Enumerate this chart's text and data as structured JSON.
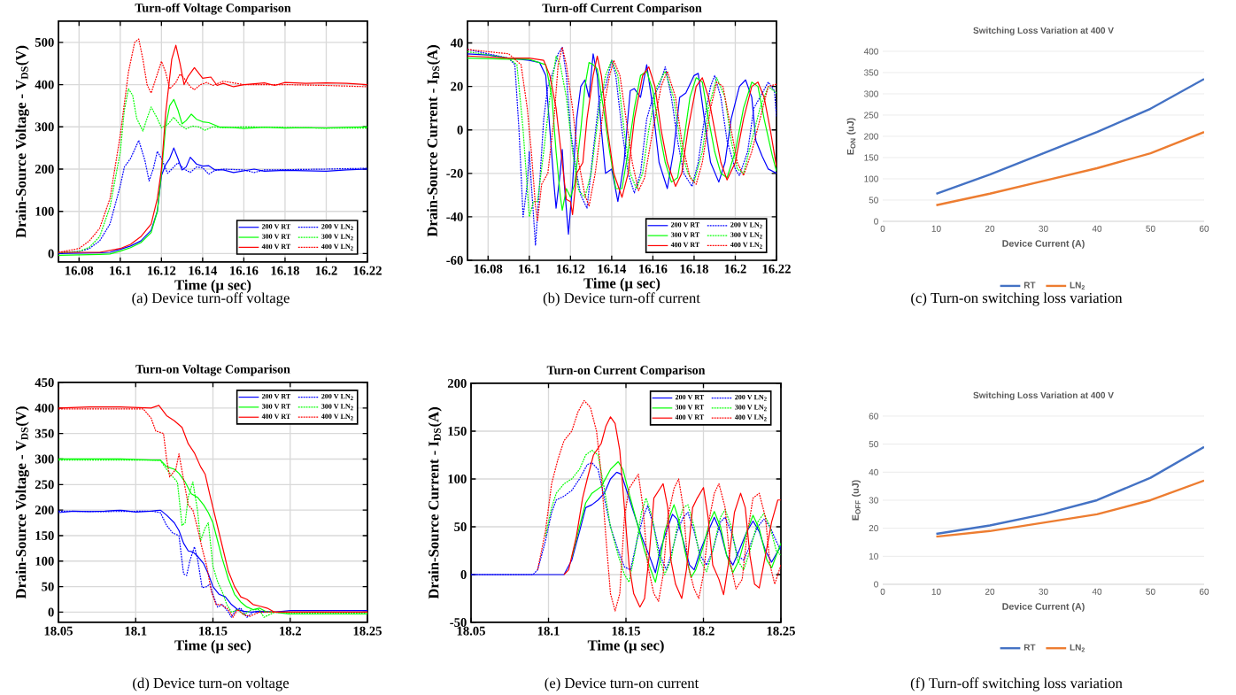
{
  "chart_data": [
    {
      "type": "line",
      "title": "Turn-off Voltage Comparison",
      "xlabel": "Time (μ sec)",
      "ylabel": "Drain-Source Voltage - V$_{DS}$(V)",
      "xlim": [
        16.07,
        16.22
      ],
      "ylim": [
        -20,
        550
      ],
      "xticks": [
        16.08,
        16.1,
        16.12,
        16.14,
        16.16,
        16.18,
        16.2,
        16.22
      ],
      "yticks": [
        0,
        100,
        200,
        300,
        400,
        500
      ],
      "grid": true,
      "legend": "bottom right",
      "annotations": [
        "(a) Device turn-off voltage"
      ],
      "series": [
        {
          "name": "200 V RT",
          "color": "#0000ff",
          "line_style": "solid",
          "x": [
            16.07,
            16.09,
            16.095,
            16.1,
            16.105,
            16.11,
            16.115,
            16.118,
            16.12,
            16.122,
            16.124,
            16.126,
            16.128,
            16.13,
            16.132,
            16.134,
            16.137,
            16.14,
            16.143,
            16.146,
            16.15,
            16.155,
            16.16,
            16.165,
            16.17,
            16.18,
            16.19,
            16.2,
            16.21,
            16.22
          ],
          "values": [
            0,
            2,
            3,
            10,
            18,
            30,
            55,
            100,
            185,
            210,
            225,
            250,
            225,
            198,
            205,
            228,
            212,
            207,
            208,
            198,
            198,
            192,
            196,
            200,
            195,
            197,
            196,
            195,
            198,
            200
          ]
        },
        {
          "name": "200 V LN$_{2}$",
          "color": "#0000ff",
          "line_style": "dotted",
          "x": [
            16.07,
            16.08,
            16.085,
            16.09,
            16.095,
            16.1,
            16.102,
            16.105,
            16.109,
            16.112,
            16.114,
            16.116,
            16.118,
            16.12,
            16.123,
            16.126,
            16.128,
            16.131,
            16.134,
            16.137,
            16.14,
            16.143,
            16.146,
            16.15,
            16.16,
            16.165,
            16.17,
            16.2,
            16.22
          ],
          "values": [
            2,
            5,
            12,
            30,
            70,
            160,
            205,
            225,
            268,
            220,
            172,
            200,
            242,
            225,
            190,
            205,
            215,
            200,
            192,
            205,
            203,
            188,
            197,
            200,
            198,
            192,
            198,
            200,
            202
          ]
        },
        {
          "name": "300 V RT",
          "color": "#00ff00",
          "line_style": "solid",
          "x": [
            16.07,
            16.09,
            16.095,
            16.1,
            16.105,
            16.11,
            16.115,
            16.118,
            16.12,
            16.122,
            16.124,
            16.126,
            16.128,
            16.13,
            16.132,
            16.1345,
            16.137,
            16.14,
            16.143,
            16.148,
            16.155,
            16.16,
            16.17,
            16.18,
            16.19,
            16.2,
            16.21,
            16.22
          ],
          "values": [
            -4,
            -2,
            -1,
            6,
            14,
            26,
            50,
            100,
            190,
            300,
            350,
            365,
            340,
            307,
            315,
            330,
            318,
            312,
            310,
            300,
            298,
            296,
            299,
            297,
            298,
            297,
            299,
            300
          ]
        },
        {
          "name": "300 V LN$_{2}$",
          "color": "#00ff00",
          "line_style": "dotted",
          "x": [
            16.07,
            16.08,
            16.085,
            16.09,
            16.095,
            16.1,
            16.102,
            16.104,
            16.106,
            16.108,
            16.111,
            16.113,
            16.115,
            16.118,
            16.12,
            16.123,
            16.126,
            16.129,
            16.132,
            16.135,
            16.138,
            16.141,
            16.145,
            16.15,
            16.16,
            16.2,
            16.22
          ],
          "values": [
            2,
            5,
            15,
            40,
            110,
            240,
            340,
            390,
            375,
            320,
            290,
            320,
            347,
            320,
            298,
            305,
            323,
            305,
            295,
            302,
            300,
            292,
            300,
            298,
            300,
            297,
            297
          ]
        },
        {
          "name": "400 V RT",
          "color": "#ff0000",
          "line_style": "solid",
          "x": [
            16.07,
            16.09,
            16.1,
            16.105,
            16.11,
            16.115,
            16.118,
            16.12,
            16.122,
            16.125,
            16.127,
            16.129,
            16.131,
            16.133,
            16.136,
            16.14,
            16.144,
            16.147,
            16.15,
            16.155,
            16.16,
            16.17,
            16.175,
            16.18,
            16.19,
            16.2,
            16.21,
            16.22
          ],
          "values": [
            3,
            3,
            12,
            22,
            40,
            70,
            130,
            200,
            330,
            460,
            493,
            450,
            400,
            420,
            440,
            415,
            418,
            398,
            403,
            395,
            400,
            404,
            398,
            405,
            403,
            404,
            403,
            400
          ]
        },
        {
          "name": "400 V LN$_{2}$",
          "color": "#ff0000",
          "line_style": "dotted",
          "x": [
            16.07,
            16.08,
            16.085,
            16.09,
            16.095,
            16.1,
            16.104,
            16.107,
            16.109,
            16.111,
            16.113,
            16.115,
            16.117,
            16.12,
            16.122,
            16.124,
            16.127,
            16.129,
            16.131,
            16.134,
            16.136,
            16.139,
            16.142,
            16.145,
            16.15,
            16.16,
            16.18,
            16.2,
            16.22
          ],
          "values": [
            3,
            12,
            30,
            60,
            130,
            280,
            430,
            500,
            508,
            460,
            400,
            380,
            410,
            455,
            430,
            390,
            405,
            425,
            415,
            395,
            388,
            400,
            405,
            398,
            408,
            400,
            400,
            398,
            395
          ]
        }
      ]
    },
    {
      "type": "line",
      "title": "Turn-off Current Comparison",
      "xlabel": "Time (μ sec)",
      "ylabel": "Drain-Source Current - I$_{DS}$(A)",
      "xlim": [
        16.07,
        16.22
      ],
      "ylim": [
        -60,
        50
      ],
      "xticks": [
        16.08,
        16.1,
        16.12,
        16.14,
        16.16,
        16.18,
        16.2,
        16.22
      ],
      "yticks": [
        -60,
        -40,
        -20,
        0,
        20,
        40
      ],
      "grid": true,
      "legend": "bottom right",
      "annotations": [
        "(b) Device turn-off current"
      ],
      "series": [
        {
          "name": "200 V RT",
          "color": "#0000ff",
          "line_style": "solid",
          "x": [
            16.07,
            16.08,
            16.09,
            16.1,
            16.105,
            16.108,
            16.11,
            16.112,
            16.113,
            16.115,
            16.116,
            16.117,
            16.119,
            16.121,
            16.123,
            16.125,
            16.127,
            16.129,
            16.131,
            16.133,
            16.135,
            16.137,
            16.14,
            16.143,
            16.146,
            16.149,
            16.151,
            16.154,
            16.157,
            16.16,
            16.163,
            16.167,
            16.17,
            16.173,
            16.176,
            16.18,
            16.182,
            16.185,
            16.188,
            16.192,
            16.195,
            16.198,
            16.202,
            16.205,
            16.208,
            16.21,
            16.213,
            16.216,
            16.22
          ],
          "values": [
            35,
            34.5,
            33,
            32,
            31,
            25,
            0,
            -25,
            -36,
            -20,
            -9,
            -25,
            -48,
            -25,
            5,
            20,
            23,
            15,
            35,
            25,
            0,
            -20,
            -18,
            -33,
            -15,
            18,
            19,
            15,
            30,
            10,
            -15,
            -27,
            -10,
            15,
            17,
            25,
            26,
            5,
            -15,
            -24,
            -15,
            5,
            20,
            23,
            15,
            -5,
            -12,
            -18,
            -20
          ]
        },
        {
          "name": "200 V LN$_{2}$",
          "color": "#0000ff",
          "line_style": "dotted",
          "x": [
            16.07,
            16.08,
            16.09,
            16.093,
            16.095,
            16.097,
            16.099,
            16.1,
            16.101,
            16.103,
            16.105,
            16.107,
            16.109,
            16.112,
            16.114,
            16.116,
            16.118,
            16.12,
            16.123,
            16.125,
            16.128,
            16.131,
            16.134,
            16.137,
            16.14,
            16.142,
            16.145,
            16.148,
            16.151,
            16.154,
            16.157,
            16.16,
            16.163,
            16.166,
            16.169,
            16.172,
            16.175,
            16.179,
            16.182,
            16.185,
            16.188,
            16.19,
            16.193,
            16.196,
            16.2,
            16.202,
            16.206,
            16.209,
            16.212,
            16.216,
            16.219,
            16.22
          ],
          "values": [
            37,
            35,
            33,
            30,
            0,
            -40,
            -25,
            -10,
            -25,
            -53,
            -25,
            5,
            20,
            28,
            35,
            38,
            25,
            0,
            -20,
            -30,
            -36,
            -10,
            15,
            20,
            32,
            25,
            0,
            -20,
            -29,
            -20,
            5,
            15,
            20,
            29,
            15,
            -5,
            -20,
            -26,
            -15,
            5,
            20,
            25,
            15,
            -5,
            -18,
            -21,
            -10,
            10,
            15,
            22,
            18,
            6
          ]
        },
        {
          "name": "300 V RT",
          "color": "#00ff00",
          "line_style": "solid",
          "x": [
            16.07,
            16.09,
            16.1,
            16.108,
            16.111,
            16.113,
            16.115,
            16.116,
            16.118,
            16.12,
            16.122,
            16.125,
            16.127,
            16.129,
            16.131,
            16.133,
            16.136,
            16.139,
            16.142,
            16.145,
            16.148,
            16.151,
            16.154,
            16.157,
            16.16,
            16.163,
            16.166,
            16.169,
            16.172,
            16.175,
            16.178,
            16.181,
            16.184,
            16.187,
            16.19,
            16.193,
            16.196,
            16.2,
            16.204,
            16.208,
            16.211,
            16.214,
            16.218,
            16.22
          ],
          "values": [
            33,
            32.5,
            32.5,
            30,
            15,
            -10,
            -30,
            -37,
            -27,
            -31,
            -25,
            0,
            20,
            31,
            30,
            28,
            10,
            -10,
            -27,
            -27,
            -10,
            10,
            25,
            27,
            18,
            0,
            -15,
            -24,
            -22,
            -5,
            15,
            24,
            22,
            5,
            -10,
            -20,
            -22,
            -10,
            10,
            22,
            20,
            5,
            -12,
            -19
          ]
        },
        {
          "name": "300 V LN$_{2}$",
          "color": "#00ff00",
          "line_style": "dotted",
          "x": [
            16.07,
            16.09,
            16.094,
            16.097,
            16.1,
            16.102,
            16.104,
            16.107,
            16.11,
            16.113,
            16.115,
            16.118,
            16.121,
            16.124,
            16.127,
            16.13,
            16.134,
            16.137,
            16.14,
            16.143,
            16.146,
            16.149,
            16.152,
            16.155,
            16.158,
            16.162,
            16.166,
            16.17,
            16.174,
            16.177,
            16.18,
            16.184,
            16.187,
            16.191,
            16.195,
            16.198,
            16.201,
            16.204,
            16.208,
            16.212,
            16.216,
            16.22
          ],
          "values": [
            36,
            33,
            30,
            0,
            -40,
            -33,
            -33,
            -10,
            15,
            34,
            30,
            15,
            -10,
            -28,
            -31,
            -20,
            10,
            25,
            32,
            25,
            0,
            -20,
            -27,
            -20,
            0,
            20,
            27,
            15,
            -10,
            -20,
            -24,
            -10,
            10,
            24,
            15,
            -5,
            -18,
            -20,
            -5,
            10,
            20,
            17
          ]
        },
        {
          "name": "400 V RT",
          "color": "#ff0000",
          "line_style": "solid",
          "x": [
            16.07,
            16.09,
            16.1,
            16.107,
            16.11,
            16.113,
            16.116,
            16.118,
            16.12,
            16.121,
            16.123,
            16.126,
            16.128,
            16.131,
            16.133,
            16.135,
            16.138,
            16.141,
            16.145,
            16.148,
            16.151,
            16.155,
            16.158,
            16.161,
            16.164,
            16.167,
            16.171,
            16.174,
            16.177,
            16.181,
            16.184,
            16.187,
            16.19,
            16.193,
            16.196,
            16.2,
            16.204,
            16.208,
            16.211,
            16.214,
            16.217,
            16.22
          ],
          "values": [
            34,
            33,
            33,
            32,
            25,
            10,
            -15,
            -32,
            -33,
            -39,
            -20,
            -15,
            5,
            25,
            34,
            25,
            0,
            -20,
            -31,
            -20,
            5,
            25,
            29,
            20,
            0,
            -15,
            -26,
            -20,
            0,
            20,
            24,
            15,
            0,
            -15,
            -23,
            -15,
            5,
            20,
            22,
            15,
            0,
            -17
          ]
        },
        {
          "name": "400 V LN$_{2}$",
          "color": "#ff0000",
          "line_style": "dotted",
          "x": [
            16.07,
            16.09,
            16.096,
            16.099,
            16.101,
            16.103,
            16.104,
            16.106,
            16.109,
            16.112,
            16.114,
            16.116,
            16.118,
            16.121,
            16.124,
            16.127,
            16.129,
            16.132,
            16.136,
            16.139,
            16.141,
            16.144,
            16.147,
            16.15,
            16.153,
            16.156,
            16.16,
            16.164,
            16.167,
            16.171,
            16.174,
            16.178,
            16.181,
            16.184,
            16.188,
            16.191,
            16.194,
            16.198,
            16.201,
            16.204,
            16.208,
            16.212,
            16.216,
            16.22
          ],
          "values": [
            37,
            35,
            30,
            10,
            -10,
            -35,
            -42,
            -25,
            -20,
            5,
            30,
            38,
            30,
            10,
            -15,
            -30,
            -35,
            -20,
            10,
            25,
            32,
            25,
            5,
            -15,
            -28,
            -22,
            0,
            20,
            27,
            15,
            -5,
            -22,
            -25,
            -15,
            10,
            22,
            20,
            0,
            -15,
            -21,
            -10,
            5,
            20,
            21
          ]
        }
      ]
    },
    {
      "type": "line",
      "title": "Switching Loss Variation at 400 V",
      "xlabel": "Device Current (A)",
      "ylabel": "E$_{ON}$ (uJ)",
      "xlim": [
        0,
        60
      ],
      "ylim": [
        0,
        400
      ],
      "xticks": [
        0,
        10,
        20,
        30,
        40,
        50,
        60
      ],
      "yticks": [
        0,
        50,
        100,
        150,
        200,
        250,
        300,
        350,
        400
      ],
      "grid": "y",
      "legend": "bottom",
      "annotations": [
        "(c) Turn-on switching loss variation"
      ],
      "x": [
        10,
        20,
        30,
        40,
        50,
        60
      ],
      "series": [
        {
          "name": "RT",
          "color": "#4472c4",
          "values": [
            65,
            110,
            160,
            210,
            265,
            335
          ]
        },
        {
          "name": "LN$_{2}$",
          "color": "#ed7d31",
          "values": [
            38,
            65,
            95,
            125,
            160,
            210
          ]
        }
      ]
    },
    {
      "type": "line",
      "title": "Turn-on Voltage Comparison",
      "xlabel": "Time (μ sec)",
      "ylabel": "Drain-Source Voltage - V$_{DS}$(V)",
      "xlim": [
        18.05,
        18.25
      ],
      "ylim": [
        -20,
        450
      ],
      "xticks": [
        18.05,
        18.1,
        18.15,
        18.2,
        18.25
      ],
      "yticks": [
        0,
        50,
        100,
        150,
        200,
        250,
        300,
        350,
        400,
        450
      ],
      "grid": true,
      "legend": "top right",
      "annotations": [
        "(d) Device turn-on voltage"
      ],
      "series": [
        {
          "name": "200 V RT",
          "color": "#0000ff",
          "line_style": "solid",
          "x": [
            18.05,
            18.06,
            18.07,
            18.08,
            18.09,
            18.1,
            18.11,
            18.116,
            18.12,
            18.125,
            18.128,
            18.131,
            18.134,
            18.137,
            18.14,
            18.144,
            18.147,
            18.15,
            18.154,
            18.158,
            18.162,
            18.166,
            18.17,
            18.175,
            18.18,
            18.19,
            18.2,
            18.22,
            18.25
          ],
          "values": [
            195,
            198,
            197,
            198,
            200,
            196,
            198,
            200,
            190,
            175,
            160,
            135,
            120,
            118,
            110,
            95,
            75,
            50,
            35,
            30,
            15,
            5,
            2,
            0,
            2,
            0,
            3,
            3,
            3
          ]
        },
        {
          "name": "200 V LN$_{2}$",
          "color": "#0000ff",
          "line_style": "dotted",
          "x": [
            18.05,
            18.08,
            18.11,
            18.116,
            18.12,
            18.124,
            18.128,
            18.131,
            18.133,
            18.135,
            18.138,
            18.14,
            18.143,
            18.146,
            18.148,
            18.15,
            18.153,
            18.156,
            18.16,
            18.162,
            18.165,
            18.168,
            18.172,
            18.176,
            18.18,
            18.2,
            18.25
          ],
          "values": [
            198,
            197,
            198,
            195,
            170,
            155,
            150,
            75,
            72,
            100,
            128,
            105,
            48,
            50,
            55,
            35,
            10,
            15,
            0,
            -10,
            5,
            8,
            -10,
            0,
            0,
            0,
            0
          ]
        },
        {
          "name": "300 V RT",
          "color": "#00ff00",
          "line_style": "solid",
          "x": [
            18.05,
            18.07,
            18.09,
            18.11,
            18.116,
            18.12,
            18.125,
            18.128,
            18.132,
            18.136,
            18.14,
            18.144,
            18.147,
            18.15,
            18.153,
            18.156,
            18.16,
            18.164,
            18.168,
            18.172,
            18.176,
            18.18,
            18.185,
            18.19,
            18.2,
            18.22,
            18.25
          ],
          "values": [
            300,
            300,
            300,
            298,
            298,
            285,
            280,
            272,
            255,
            232,
            225,
            210,
            195,
            175,
            140,
            105,
            65,
            35,
            20,
            10,
            5,
            8,
            0,
            0,
            -4,
            -4,
            -4
          ]
        },
        {
          "name": "300 V LN$_{2}$",
          "color": "#00ff00",
          "line_style": "dotted",
          "x": [
            18.05,
            18.08,
            18.11,
            18.116,
            18.12,
            18.124,
            18.127,
            18.13,
            18.132,
            18.134,
            18.137,
            18.14,
            18.142,
            18.145,
            18.147,
            18.15,
            18.153,
            18.156,
            18.159,
            18.162,
            18.166,
            18.17,
            18.175,
            18.18,
            18.183,
            18.19,
            18.2,
            18.25
          ],
          "values": [
            298,
            298,
            298,
            297,
            280,
            265,
            255,
            170,
            175,
            225,
            255,
            200,
            140,
            165,
            175,
            90,
            60,
            40,
            15,
            0,
            5,
            -5,
            5,
            5,
            -10,
            0,
            -2,
            -2
          ]
        },
        {
          "name": "400 V RT",
          "color": "#ff0000",
          "line_style": "solid",
          "x": [
            18.05,
            18.07,
            18.09,
            18.11,
            18.115,
            18.12,
            18.125,
            18.13,
            18.134,
            18.138,
            18.142,
            18.145,
            18.148,
            18.152,
            18.156,
            18.16,
            18.164,
            18.168,
            18.172,
            18.176,
            18.18,
            18.185,
            18.19,
            18.2,
            18.22,
            18.25
          ],
          "values": [
            400,
            402,
            402,
            400,
            405,
            385,
            375,
            362,
            330,
            312,
            285,
            270,
            230,
            180,
            130,
            80,
            50,
            30,
            25,
            15,
            12,
            8,
            0,
            0,
            0,
            0
          ]
        },
        {
          "name": "400 V LN$_{2}$",
          "color": "#ff0000",
          "line_style": "dotted",
          "x": [
            18.05,
            18.08,
            18.105,
            18.11,
            18.113,
            18.118,
            18.12,
            18.122,
            18.126,
            18.128,
            18.131,
            18.134,
            18.137,
            18.14,
            18.143,
            18.146,
            18.149,
            18.152,
            18.155,
            18.158,
            18.16,
            18.163,
            18.166,
            18.17,
            18.174,
            18.18,
            18.2,
            18.25
          ],
          "values": [
            398,
            398,
            398,
            380,
            355,
            350,
            300,
            265,
            280,
            310,
            260,
            210,
            200,
            165,
            125,
            90,
            40,
            15,
            15,
            10,
            5,
            -10,
            5,
            -5,
            -8,
            0,
            0,
            0
          ]
        }
      ]
    },
    {
      "type": "line",
      "title": "Turn-on Current Comparison",
      "xlabel": "Time (μ sec)",
      "ylabel": "Drain-Source Current - I$_{DS}$(A)",
      "xlim": [
        18.05,
        18.25
      ],
      "ylim": [
        -50,
        200
      ],
      "xticks": [
        18.05,
        18.1,
        18.15,
        18.2,
        18.25
      ],
      "yticks": [
        -50,
        0,
        50,
        100,
        150,
        200
      ],
      "grid": true,
      "legend": "top right",
      "annotations": [
        "(e) Device turn-on current"
      ],
      "series": [
        {
          "name": "200 V RT",
          "color": "#0000ff",
          "line_style": "solid",
          "x": [
            18.05,
            18.1,
            18.11,
            18.115,
            18.12,
            18.124,
            18.128,
            18.132,
            18.136,
            18.14,
            18.144,
            18.147,
            18.15,
            18.155,
            18.16,
            18.165,
            18.169,
            18.172,
            18.176,
            18.18,
            18.183,
            18.187,
            18.191,
            18.194,
            18.198,
            18.203,
            18.207,
            18.211,
            18.215,
            18.219,
            18.223,
            18.228,
            18.232,
            18.236,
            18.24,
            18.244,
            18.25
          ],
          "values": [
            0,
            0,
            0,
            15,
            45,
            70,
            73,
            78,
            85,
            100,
            107,
            105,
            90,
            65,
            40,
            20,
            2,
            25,
            45,
            63,
            58,
            35,
            10,
            5,
            25,
            45,
            60,
            45,
            20,
            10,
            25,
            45,
            56,
            45,
            25,
            13,
            30
          ]
        },
        {
          "name": "200 V LN$_{2}$",
          "color": "#0000ff",
          "line_style": "dotted",
          "x": [
            18.05,
            18.09,
            18.093,
            18.098,
            18.102,
            18.105,
            18.11,
            18.115,
            18.12,
            18.125,
            18.128,
            18.132,
            18.136,
            18.14,
            18.145,
            18.149,
            18.153,
            18.157,
            18.161,
            18.164,
            18.168,
            18.172,
            18.176,
            18.179,
            18.183,
            18.187,
            18.19,
            18.194,
            18.198,
            18.202,
            18.206,
            18.211,
            18.214,
            18.218,
            18.222,
            18.226,
            18.23,
            18.235,
            18.239,
            18.243,
            18.247,
            18.25
          ],
          "values": [
            0,
            0,
            5,
            35,
            65,
            78,
            82,
            88,
            100,
            115,
            117,
            110,
            80,
            50,
            25,
            8,
            5,
            35,
            60,
            72,
            50,
            20,
            5,
            20,
            45,
            60,
            65,
            45,
            20,
            10,
            25,
            55,
            60,
            45,
            20,
            15,
            30,
            50,
            58,
            50,
            35,
            25
          ]
        },
        {
          "name": "300 V RT",
          "color": "#00ff00",
          "line_style": "solid",
          "x": [
            18.115,
            18.12,
            18.124,
            18.128,
            18.134,
            18.14,
            18.145,
            18.148,
            18.152,
            18.157,
            18.162,
            18.166,
            18.169,
            18.172,
            18.175,
            18.178,
            18.181,
            18.184,
            18.188,
            18.192,
            18.195,
            18.2,
            18.204,
            18.207,
            18.211,
            18.215,
            18.219,
            18.223,
            18.228,
            18.232,
            18.236,
            18.241,
            18.244,
            18.25
          ],
          "values": [
            18,
            50,
            75,
            85,
            92,
            110,
            118,
            110,
            85,
            55,
            25,
            5,
            -8,
            15,
            45,
            60,
            73,
            58,
            25,
            -3,
            5,
            30,
            55,
            66,
            50,
            20,
            2,
            15,
            45,
            62,
            48,
            15,
            7,
            33
          ]
        },
        {
          "name": "300 V LN$_{2}$",
          "color": "#00ff00",
          "line_style": "dotted",
          "x": [
            18.098,
            18.102,
            18.105,
            18.11,
            18.115,
            18.12,
            18.124,
            18.128,
            18.132,
            18.136,
            18.14,
            18.145,
            18.149,
            18.152,
            18.156,
            18.16,
            18.163,
            18.167,
            18.171,
            18.175,
            18.179,
            18.183,
            18.187,
            18.19,
            18.194,
            18.198,
            18.202,
            18.206,
            18.211,
            18.214,
            18.218,
            18.222,
            18.226,
            18.23,
            18.235,
            18.239,
            18.243,
            18.247,
            18.25
          ],
          "values": [
            40,
            70,
            85,
            95,
            100,
            110,
            125,
            130,
            125,
            90,
            50,
            20,
            0,
            -8,
            25,
            65,
            80,
            60,
            20,
            0,
            15,
            50,
            70,
            73,
            50,
            15,
            3,
            25,
            60,
            68,
            50,
            15,
            5,
            25,
            55,
            64,
            50,
            25,
            20
          ]
        },
        {
          "name": "400 V RT",
          "color": "#ff0000",
          "line_style": "solid",
          "x": [
            18.11,
            18.113,
            18.118,
            18.122,
            18.125,
            18.129,
            18.134,
            18.137,
            18.14,
            18.143,
            18.146,
            18.149,
            18.152,
            18.155,
            18.159,
            18.162,
            18.165,
            18.168,
            18.172,
            18.174,
            18.177,
            18.179,
            18.182,
            18.186,
            18.189,
            18.193,
            18.196,
            18.2,
            18.203,
            18.206,
            18.21,
            18.213,
            18.216,
            18.22,
            18.224,
            18.227,
            18.23,
            18.233,
            18.236,
            18.24,
            18.244,
            18.248,
            18.25
          ],
          "values": [
            0,
            5,
            40,
            80,
            100,
            125,
            137,
            155,
            165,
            158,
            130,
            70,
            10,
            -20,
            -34,
            -25,
            20,
            80,
            90,
            95,
            70,
            15,
            -10,
            -25,
            5,
            70,
            80,
            91,
            60,
            10,
            -5,
            -21,
            10,
            65,
            85,
            70,
            20,
            -10,
            -14,
            20,
            55,
            78,
            78
          ]
        },
        {
          "name": "400 V LN$_{2}$",
          "color": "#ff0000",
          "line_style": "dotted",
          "x": [
            18.093,
            18.098,
            18.102,
            18.106,
            18.11,
            18.115,
            18.119,
            18.123,
            18.127,
            18.131,
            18.134,
            18.137,
            18.14,
            18.143,
            18.146,
            18.149,
            18.152,
            18.156,
            18.158,
            18.161,
            18.164,
            18.168,
            18.171,
            18.174,
            18.177,
            18.181,
            18.184,
            18.187,
            18.19,
            18.194,
            18.197,
            18.2,
            18.204,
            18.207,
            18.21,
            18.214,
            18.217,
            18.221,
            18.225,
            18.228,
            18.232,
            18.236,
            18.24,
            18.243,
            18.246,
            18.25
          ],
          "values": [
            5,
            45,
            95,
            120,
            140,
            150,
            170,
            182,
            175,
            150,
            105,
            40,
            -20,
            -38,
            -20,
            60,
            90,
            100,
            105,
            70,
            10,
            -20,
            -28,
            0,
            60,
            90,
            100,
            70,
            10,
            -15,
            -25,
            0,
            60,
            85,
            95,
            70,
            15,
            -15,
            -5,
            40,
            80,
            85,
            60,
            10,
            -10,
            10
          ]
        }
      ]
    },
    {
      "type": "line",
      "title": "Switching Loss Variation at 400 V",
      "xlabel": "Device Current (A)",
      "ylabel": "E$_{OFF}$ (uJ)",
      "xlim": [
        0,
        60
      ],
      "ylim": [
        0,
        60
      ],
      "xticks": [
        0,
        10,
        20,
        30,
        40,
        50,
        60
      ],
      "yticks": [
        0,
        10,
        20,
        30,
        40,
        50,
        60
      ],
      "grid": "y",
      "legend": "bottom",
      "annotations": [
        "(f) Turn-off switching loss variation"
      ],
      "x": [
        10,
        20,
        30,
        40,
        50,
        60
      ],
      "series": [
        {
          "name": "RT",
          "color": "#4472c4",
          "values": [
            18,
            21,
            25,
            30,
            38,
            49
          ]
        },
        {
          "name": "LN$_{2}$",
          "color": "#ed7d31",
          "values": [
            17,
            19,
            22,
            25,
            30,
            37
          ]
        }
      ]
    }
  ]
}
